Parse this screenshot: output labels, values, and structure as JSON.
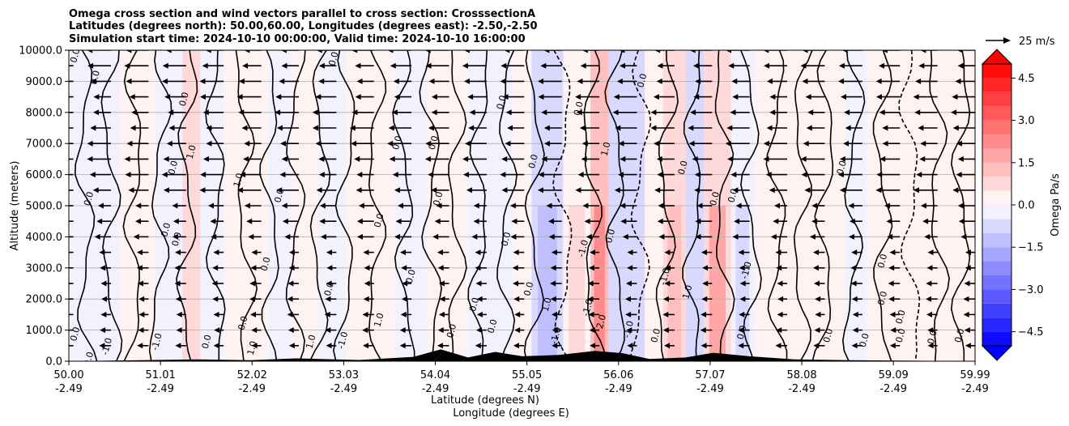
{
  "chart_data": {
    "type": "heatmap",
    "title_lines": [
      "Omega cross section and wind vectors parallel to cross section: CrosssectionA",
      "Latitudes (degrees north): 50.00,60.00, Longitudes (degrees east): -2.50,-2.50",
      "Simulation start time: 2024-10-10 00:00:00, Valid time: 2024-10-10 16:00:00"
    ],
    "xlabel_line1": "Latitude (degrees N)",
    "xlabel_line2": "Longitude (degrees E)",
    "ylabel": "Altitude (meters)",
    "x_range": [
      50.0,
      59.99
    ],
    "y_range": [
      0,
      10000
    ],
    "x_ticks": [
      {
        "value": 50.0,
        "lat": "50.00",
        "lon": "-2.49"
      },
      {
        "value": 51.01,
        "lat": "51.01",
        "lon": "-2.49"
      },
      {
        "value": 52.02,
        "lat": "52.02",
        "lon": "-2.49"
      },
      {
        "value": 53.03,
        "lat": "53.03",
        "lon": "-2.49"
      },
      {
        "value": 54.04,
        "lat": "54.04",
        "lon": "-2.49"
      },
      {
        "value": 55.05,
        "lat": "55.05",
        "lon": "-2.49"
      },
      {
        "value": 56.06,
        "lat": "56.06",
        "lon": "-2.49"
      },
      {
        "value": 57.07,
        "lat": "57.07",
        "lon": "-2.49"
      },
      {
        "value": 58.08,
        "lat": "58.08",
        "lon": "-2.49"
      },
      {
        "value": 59.09,
        "lat": "59.09",
        "lon": "-2.49"
      },
      {
        "value": 59.99,
        "lat": "59.99",
        "lon": "-2.49"
      }
    ],
    "y_ticks": [
      {
        "value": 0,
        "label": "0.0"
      },
      {
        "value": 1000,
        "label": "1000.0"
      },
      {
        "value": 2000,
        "label": "2000.0"
      },
      {
        "value": 3000,
        "label": "3000.0"
      },
      {
        "value": 4000,
        "label": "4000.0"
      },
      {
        "value": 5000,
        "label": "5000.0"
      },
      {
        "value": 6000,
        "label": "6000.0"
      },
      {
        "value": 7000,
        "label": "7000.0"
      },
      {
        "value": 8000,
        "label": "8000.0"
      },
      {
        "value": 9000,
        "label": "9000.0"
      },
      {
        "value": 10000,
        "label": "10000.0"
      }
    ],
    "grid": "horizontal",
    "colorbar": {
      "label": "Omega Pa/s",
      "range": [
        -5.0,
        5.0
      ],
      "levels": 20,
      "extend": "both",
      "ticks": [
        {
          "value": 4.5,
          "label": "4.5"
        },
        {
          "value": 3.0,
          "label": "3.0"
        },
        {
          "value": 1.5,
          "label": "1.5"
        },
        {
          "value": 0.0,
          "label": "0.0"
        },
        {
          "value": -1.5,
          "label": "−1.5"
        },
        {
          "value": -3.0,
          "label": "−3.0"
        },
        {
          "value": -4.5,
          "label": "−4.5"
        }
      ],
      "colors": {
        "pos": "#ff0000",
        "neg": "#0000ff",
        "zero": "#ffffff"
      }
    },
    "quiver_key": {
      "label": "25 m/s",
      "speed": 25
    },
    "omega_bands": [
      {
        "x0": 50.0,
        "x1": 50.55,
        "value": -0.3
      },
      {
        "x0": 50.55,
        "x1": 50.95,
        "value": 0.3
      },
      {
        "x0": 50.95,
        "x1": 51.25,
        "value": -0.3
      },
      {
        "x0": 51.25,
        "x1": 51.45,
        "value": 0.9
      },
      {
        "x0": 51.45,
        "x1": 51.7,
        "value": -0.3
      },
      {
        "x0": 51.7,
        "x1": 52.2,
        "value": 0.4
      },
      {
        "x0": 52.2,
        "x1": 52.45,
        "value": -0.5
      },
      {
        "x0": 52.45,
        "x1": 52.75,
        "value": 0.4
      },
      {
        "x0": 52.75,
        "x1": 53.05,
        "value": -0.4
      },
      {
        "x0": 53.05,
        "x1": 53.6,
        "value": 0.3
      },
      {
        "x0": 53.6,
        "x1": 53.95,
        "value": -0.4
      },
      {
        "x0": 53.95,
        "x1": 54.4,
        "value": 0.3
      },
      {
        "x0": 54.4,
        "x1": 54.9,
        "value": -0.5
      },
      {
        "x0": 54.9,
        "x1": 55.1,
        "value": 0.3
      },
      {
        "x0": 55.1,
        "x1": 55.45,
        "value": -1.5
      },
      {
        "x0": 55.45,
        "x1": 55.75,
        "value": 0.5
      },
      {
        "x0": 55.75,
        "x1": 55.95,
        "value": 2.0
      },
      {
        "x0": 55.95,
        "x1": 56.35,
        "value": -1.0
      },
      {
        "x0": 56.35,
        "x1": 56.55,
        "value": 0.3
      },
      {
        "x0": 56.55,
        "x1": 56.8,
        "value": 1.2
      },
      {
        "x0": 56.8,
        "x1": 57.0,
        "value": -1.0
      },
      {
        "x0": 57.0,
        "x1": 57.3,
        "value": 1.5
      },
      {
        "x0": 57.3,
        "x1": 57.55,
        "value": -0.6
      },
      {
        "x0": 57.55,
        "x1": 58.55,
        "value": 0.3
      },
      {
        "x0": 58.55,
        "x1": 58.8,
        "value": -0.3
      },
      {
        "x0": 58.8,
        "x1": 59.99,
        "value": 0.3
      }
    ],
    "contour_labels": [
      {
        "x": 50.1,
        "y": 9800,
        "text": "0.0"
      },
      {
        "x": 50.32,
        "y": 9100,
        "text": "0.0"
      },
      {
        "x": 51.3,
        "y": 8400,
        "text": "0.0"
      },
      {
        "x": 51.38,
        "y": 6700,
        "text": "1.0"
      },
      {
        "x": 51.18,
        "y": 6200,
        "text": "0.0"
      },
      {
        "x": 51.9,
        "y": 5800,
        "text": "1.0"
      },
      {
        "x": 50.25,
        "y": 5200,
        "text": "0.0"
      },
      {
        "x": 51.1,
        "y": 4200,
        "text": "0.0"
      },
      {
        "x": 51.22,
        "y": 3900,
        "text": "0.0"
      },
      {
        "x": 52.35,
        "y": 5300,
        "text": "0.0"
      },
      {
        "x": 52.95,
        "y": 9700,
        "text": "0.0"
      },
      {
        "x": 53.65,
        "y": 7000,
        "text": "0.0"
      },
      {
        "x": 54.05,
        "y": 7000,
        "text": "0.0"
      },
      {
        "x": 54.8,
        "y": 8300,
        "text": "0.0"
      },
      {
        "x": 54.1,
        "y": 5200,
        "text": "0.0"
      },
      {
        "x": 53.45,
        "y": 4500,
        "text": "0.0"
      },
      {
        "x": 55.15,
        "y": 6400,
        "text": "0.0"
      },
      {
        "x": 55.65,
        "y": 8100,
        "text": "0.0"
      },
      {
        "x": 55.95,
        "y": 6800,
        "text": "1.0"
      },
      {
        "x": 56.35,
        "y": 9000,
        "text": "0.0"
      },
      {
        "x": 56.8,
        "y": 6200,
        "text": "0.0"
      },
      {
        "x": 57.15,
        "y": 5200,
        "text": "0.0"
      },
      {
        "x": 57.35,
        "y": 5300,
        "text": "0.0"
      },
      {
        "x": 58.55,
        "y": 6200,
        "text": "0.0"
      },
      {
        "x": 56.0,
        "y": 4000,
        "text": "0.0"
      },
      {
        "x": 55.7,
        "y": 3600,
        "text": "-1.0"
      },
      {
        "x": 54.85,
        "y": 3900,
        "text": "0.0"
      },
      {
        "x": 52.2,
        "y": 3100,
        "text": "0.0"
      },
      {
        "x": 52.9,
        "y": 2300,
        "text": "0.0"
      },
      {
        "x": 53.8,
        "y": 2700,
        "text": "0.0"
      },
      {
        "x": 54.5,
        "y": 1800,
        "text": "0.0"
      },
      {
        "x": 55.1,
        "y": 2300,
        "text": "0.0"
      },
      {
        "x": 55.3,
        "y": 1800,
        "text": "1.0"
      },
      {
        "x": 55.75,
        "y": 1700,
        "text": "-1.0"
      },
      {
        "x": 56.6,
        "y": 2700,
        "text": "-1.0"
      },
      {
        "x": 56.85,
        "y": 2200,
        "text": "1.0"
      },
      {
        "x": 59.0,
        "y": 3200,
        "text": "0.0"
      },
      {
        "x": 59.0,
        "y": 2000,
        "text": "0.0"
      },
      {
        "x": 59.2,
        "y": 1400,
        "text": "0.0"
      },
      {
        "x": 59.2,
        "y": 800,
        "text": "0.0"
      },
      {
        "x": 59.55,
        "y": 750,
        "text": "0.0"
      },
      {
        "x": 59.85,
        "y": 800,
        "text": "0.0"
      },
      {
        "x": 58.4,
        "y": 800,
        "text": "0.0"
      },
      {
        "x": 58.8,
        "y": 650,
        "text": "0.0"
      },
      {
        "x": 57.45,
        "y": 900,
        "text": "0.0"
      },
      {
        "x": 55.9,
        "y": 1250,
        "text": "2.0"
      },
      {
        "x": 56.2,
        "y": 1000,
        "text": "-1.0"
      },
      {
        "x": 56.5,
        "y": 800,
        "text": "0.0"
      },
      {
        "x": 54.25,
        "y": 950,
        "text": "0.0"
      },
      {
        "x": 54.7,
        "y": 1100,
        "text": "0.0"
      },
      {
        "x": 55.4,
        "y": 800,
        "text": "-1.0"
      },
      {
        "x": 53.05,
        "y": 650,
        "text": "-1.0"
      },
      {
        "x": 52.7,
        "y": 600,
        "text": "1.0"
      },
      {
        "x": 52.05,
        "y": 400,
        "text": "1.0"
      },
      {
        "x": 51.55,
        "y": 600,
        "text": "0.0"
      },
      {
        "x": 51.0,
        "y": 600,
        "text": "-1.0"
      },
      {
        "x": 50.45,
        "y": 450,
        "text": "-1.0"
      },
      {
        "x": 50.1,
        "y": 850,
        "text": "0.0"
      },
      {
        "x": 50.25,
        "y": 50,
        "text": "0.0"
      },
      {
        "x": 51.95,
        "y": 1200,
        "text": "0.0"
      },
      {
        "x": 53.45,
        "y": 1300,
        "text": "1.0"
      },
      {
        "x": 57.5,
        "y": 2900,
        "text": "-1.0"
      }
    ]
  }
}
